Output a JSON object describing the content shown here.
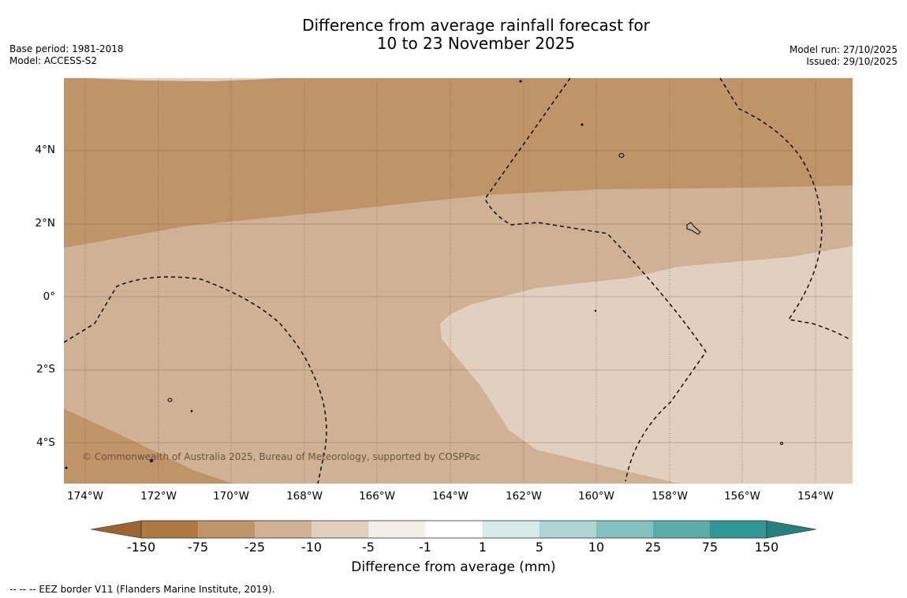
{
  "header": {
    "title_line1": "Difference from average rainfall forecast for",
    "title_line2": "10 to 23 November 2025",
    "base_period": "Base period: 1981-2018",
    "model": "Model: ACCESS-S2",
    "model_run": "Model run: 27/10/2025",
    "issued": "Issued: 29/10/2025"
  },
  "map": {
    "copyright": "© Commonwealth of Australia 2025, Bureau of Meteorology, supported by COSPPac",
    "lat_labels": [
      "4°N",
      "2°N",
      "0°",
      "2°S",
      "4°S"
    ],
    "lon_labels": [
      "174°W",
      "172°W",
      "170°W",
      "168°W",
      "166°W",
      "164°W",
      "162°W",
      "160°W",
      "158°W",
      "156°W",
      "154°W"
    ],
    "colors": {
      "band_-75_-25": "#c09469",
      "band_-25_-10": "#d1b193",
      "band_-10_-5": "#e2d0be"
    }
  },
  "colorbar": {
    "ticks": [
      "-150",
      "-75",
      "-25",
      "-10",
      "-5",
      "-1",
      "1",
      "5",
      "10",
      "25",
      "75",
      "150"
    ],
    "label": "Difference from average (mm)",
    "colors": [
      "#9b6530",
      "#b07841",
      "#c09469",
      "#d1b193",
      "#e2d0be",
      "#f2efeb",
      "#ffffff",
      "#d5eae9",
      "#acd5d3",
      "#83c1bf",
      "#59aca9",
      "#309894",
      "#25817e"
    ]
  },
  "footnote": "--  --  -- EEZ border V11 (Flanders Marine Institute, 2019)."
}
